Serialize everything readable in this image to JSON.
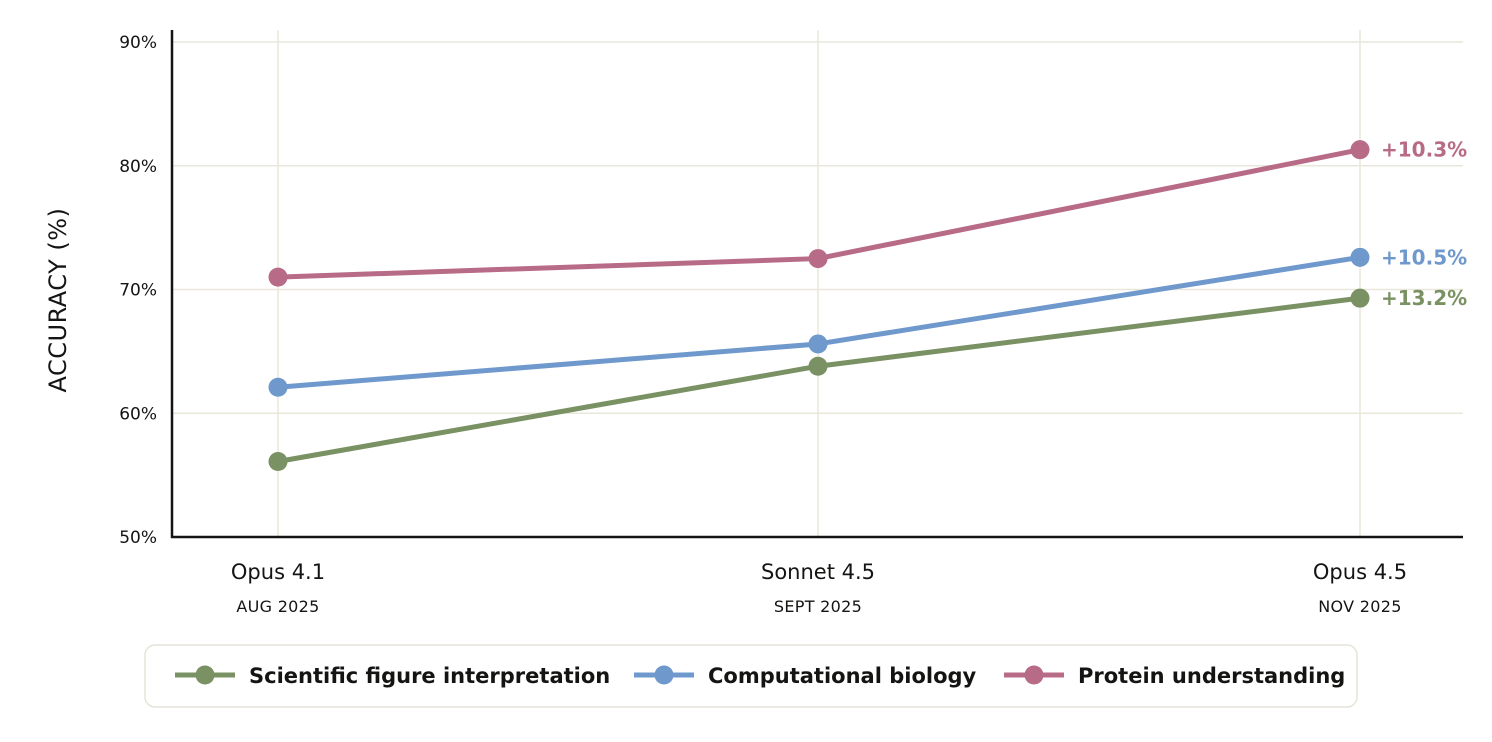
{
  "chart_data": {
    "type": "line",
    "ylabel": "ACCURACY (%)",
    "ylim": [
      50,
      90
    ],
    "yticks": [
      50,
      60,
      70,
      80,
      90
    ],
    "ytick_labels": [
      "50%",
      "60%",
      "70%",
      "80%",
      "90%"
    ],
    "grid": true,
    "categories": [
      {
        "name": "Opus 4.1",
        "date": "AUG 2025"
      },
      {
        "name": "Sonnet 4.5",
        "date": "SEPT 2025"
      },
      {
        "name": "Opus 4.5",
        "date": "NOV 2025"
      }
    ],
    "series": [
      {
        "name": "Scientific figure interpretation",
        "values": [
          56.1,
          63.8,
          69.3
        ],
        "delta_label": "+13.2%",
        "color": "#7a9163"
      },
      {
        "name": "Computational biology",
        "values": [
          62.1,
          65.6,
          72.6
        ],
        "delta_label": "+10.5%",
        "color": "#6f99cc"
      },
      {
        "name": "Protein understanding",
        "values": [
          71.0,
          72.5,
          81.3
        ],
        "delta_label": "+10.3%",
        "color": "#b86b86"
      }
    ],
    "legend_position": "bottom-center"
  },
  "colors": {
    "grid": "#e9e7dc",
    "axis": "#141413",
    "legend_border": "#e6e3da"
  }
}
